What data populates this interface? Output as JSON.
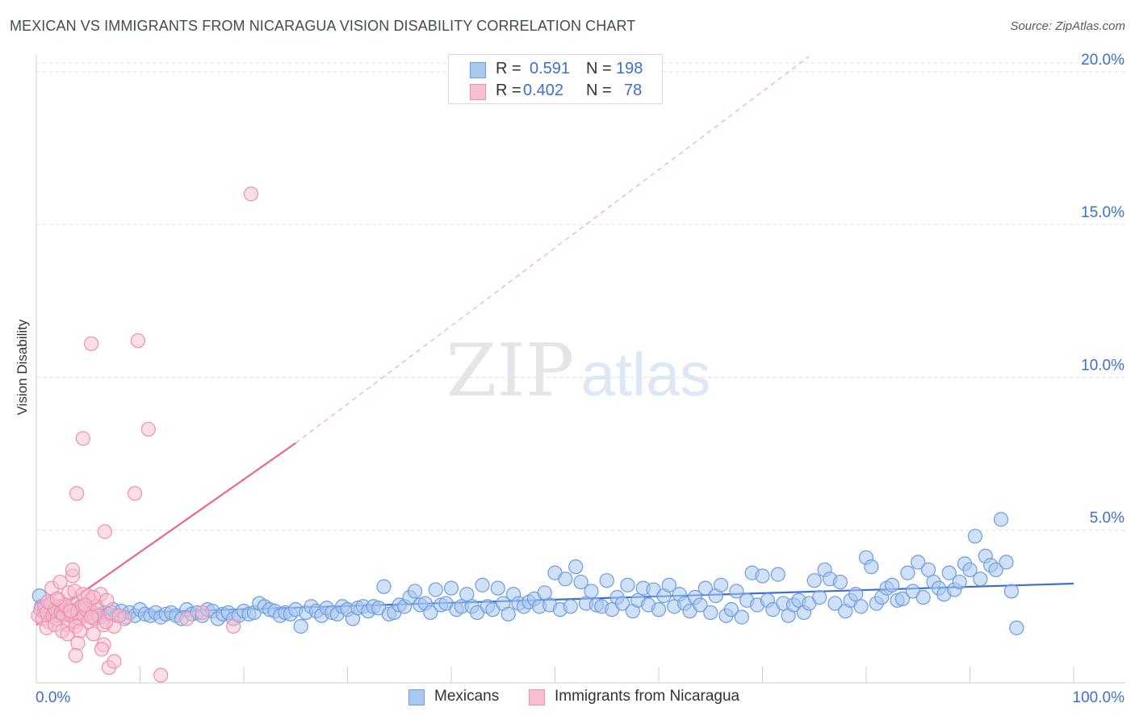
{
  "title": "MEXICAN VS IMMIGRANTS FROM NICARAGUA VISION DISABILITY CORRELATION CHART",
  "source": "Source: ZipAtlas.com",
  "watermark": {
    "zip": "ZIP",
    "atlas": "atlas"
  },
  "colors": {
    "blue": "#3d6fd0",
    "blue_fill": "#a9c8f0",
    "blue_stroke": "#6c9be0",
    "pink": "#e8658f",
    "pink_fill": "#f7bfd0",
    "pink_stroke": "#ee8fad",
    "grid": "#dde1e6",
    "axis_text": "#3d6fd0"
  },
  "legend": {
    "rows": [
      {
        "r_label": "R =",
        "r_value": "0.591",
        "n_label": "N =",
        "n_value": "198"
      },
      {
        "r_label": "R =",
        "r_value": "0.402",
        "n_label": "N =",
        "n_value": "78"
      }
    ]
  },
  "bottom_legend": [
    "Mexicans",
    "Immigrants from Nicaragua"
  ],
  "chart_data": {
    "type": "scatter",
    "title": "MEXICAN VS IMMIGRANTS FROM NICARAGUA VISION DISABILITY CORRELATION CHART",
    "xlabel": "",
    "ylabel": "Vision Disability",
    "xlim": [
      0,
      100
    ],
    "ylim": [
      0,
      20.5
    ],
    "x_tick_labels": [
      "0.0%",
      "100.0%"
    ],
    "y_ticks": [
      5,
      10,
      15,
      20
    ],
    "y_tick_labels": [
      "5.0%",
      "10.0%",
      "15.0%",
      "20.0%"
    ],
    "grid": true,
    "series": [
      {
        "name": "Mexicans",
        "color": "#3d6fd0",
        "trend": {
          "x": [
            0,
            100
          ],
          "y": [
            2.2,
            3.25
          ],
          "style": "solid"
        },
        "points": [
          [
            0.3,
            2.85
          ],
          [
            0.5,
            2.5
          ],
          [
            0.7,
            2.3
          ],
          [
            0.9,
            2.45
          ],
          [
            1.1,
            2.2
          ],
          [
            1.3,
            2.55
          ],
          [
            1.5,
            2.35
          ],
          [
            1.8,
            2.4
          ],
          [
            2.0,
            2.2
          ],
          [
            2.2,
            2.5
          ],
          [
            2.5,
            2.3
          ],
          [
            2.7,
            2.45
          ],
          [
            3.0,
            2.25
          ],
          [
            3.3,
            2.4
          ],
          [
            3.6,
            2.2
          ],
          [
            4.0,
            2.35
          ],
          [
            4.3,
            2.5
          ],
          [
            4.7,
            2.25
          ],
          [
            5.0,
            2.3
          ],
          [
            5.4,
            2.2
          ],
          [
            5.8,
            2.4
          ],
          [
            6.2,
            2.15
          ],
          [
            6.6,
            2.3
          ],
          [
            7.0,
            2.25
          ],
          [
            7.4,
            2.4
          ],
          [
            7.8,
            2.2
          ],
          [
            8.2,
            2.35
          ],
          [
            8.6,
            2.15
          ],
          [
            9.0,
            2.3
          ],
          [
            9.5,
            2.2
          ],
          [
            10.0,
            2.4
          ],
          [
            10.5,
            2.25
          ],
          [
            11.0,
            2.2
          ],
          [
            11.5,
            2.3
          ],
          [
            12.0,
            2.15
          ],
          [
            12.5,
            2.25
          ],
          [
            13.0,
            2.3
          ],
          [
            13.5,
            2.2
          ],
          [
            14.0,
            2.1
          ],
          [
            14.5,
            2.4
          ],
          [
            15.0,
            2.25
          ],
          [
            15.5,
            2.3
          ],
          [
            16.0,
            2.2
          ],
          [
            16.5,
            2.4
          ],
          [
            17.0,
            2.35
          ],
          [
            17.5,
            2.1
          ],
          [
            18.0,
            2.25
          ],
          [
            18.5,
            2.3
          ],
          [
            19.0,
            2.1
          ],
          [
            19.5,
            2.2
          ],
          [
            20.0,
            2.35
          ],
          [
            20.5,
            2.25
          ],
          [
            21.0,
            2.3
          ],
          [
            21.5,
            2.6
          ],
          [
            22.0,
            2.5
          ],
          [
            22.5,
            2.4
          ],
          [
            23.0,
            2.35
          ],
          [
            23.5,
            2.2
          ],
          [
            24.0,
            2.3
          ],
          [
            24.5,
            2.25
          ],
          [
            25.0,
            2.4
          ],
          [
            25.5,
            1.85
          ],
          [
            26.0,
            2.3
          ],
          [
            26.5,
            2.5
          ],
          [
            27.0,
            2.35
          ],
          [
            27.5,
            2.2
          ],
          [
            28.0,
            2.45
          ],
          [
            28.5,
            2.3
          ],
          [
            29.0,
            2.25
          ],
          [
            29.5,
            2.5
          ],
          [
            30.0,
            2.4
          ],
          [
            30.5,
            2.1
          ],
          [
            31.0,
            2.45
          ],
          [
            31.5,
            2.5
          ],
          [
            32.0,
            2.35
          ],
          [
            32.5,
            2.5
          ],
          [
            33.0,
            2.45
          ],
          [
            33.5,
            3.15
          ],
          [
            34.0,
            2.25
          ],
          [
            34.5,
            2.3
          ],
          [
            35.0,
            2.55
          ],
          [
            35.5,
            2.5
          ],
          [
            36.0,
            2.8
          ],
          [
            36.5,
            3.0
          ],
          [
            37.0,
            2.55
          ],
          [
            37.5,
            2.6
          ],
          [
            38.0,
            2.3
          ],
          [
            38.5,
            3.05
          ],
          [
            39.0,
            2.55
          ],
          [
            39.5,
            2.6
          ],
          [
            40.0,
            3.1
          ],
          [
            40.5,
            2.4
          ],
          [
            41.0,
            2.5
          ],
          [
            41.5,
            2.9
          ],
          [
            42.0,
            2.5
          ],
          [
            42.5,
            2.3
          ],
          [
            43.0,
            3.2
          ],
          [
            43.5,
            2.5
          ],
          [
            44.0,
            2.4
          ],
          [
            44.5,
            3.1
          ],
          [
            45.0,
            2.6
          ],
          [
            45.5,
            2.25
          ],
          [
            46.0,
            2.9
          ],
          [
            46.5,
            2.6
          ],
          [
            47.0,
            2.5
          ],
          [
            47.5,
            2.65
          ],
          [
            48.0,
            2.75
          ],
          [
            48.5,
            2.5
          ],
          [
            49.0,
            2.95
          ],
          [
            49.5,
            2.55
          ],
          [
            50.0,
            3.6
          ],
          [
            50.5,
            2.4
          ],
          [
            51.0,
            3.4
          ],
          [
            51.5,
            2.5
          ],
          [
            52.0,
            3.8
          ],
          [
            52.5,
            3.3
          ],
          [
            53.0,
            2.6
          ],
          [
            53.5,
            3.0
          ],
          [
            54.0,
            2.55
          ],
          [
            54.5,
            2.5
          ],
          [
            55.0,
            3.35
          ],
          [
            55.5,
            2.4
          ],
          [
            56.0,
            2.8
          ],
          [
            56.5,
            2.6
          ],
          [
            57.0,
            3.2
          ],
          [
            57.5,
            2.35
          ],
          [
            58.0,
            2.7
          ],
          [
            58.5,
            3.1
          ],
          [
            59.0,
            2.55
          ],
          [
            59.5,
            3.05
          ],
          [
            60.0,
            2.4
          ],
          [
            60.5,
            2.85
          ],
          [
            61.0,
            3.2
          ],
          [
            61.5,
            2.5
          ],
          [
            62.0,
            2.9
          ],
          [
            62.5,
            2.6
          ],
          [
            63.0,
            2.35
          ],
          [
            63.5,
            2.8
          ],
          [
            64.0,
            2.55
          ],
          [
            64.5,
            3.1
          ],
          [
            65.0,
            2.3
          ],
          [
            65.5,
            2.85
          ],
          [
            66.0,
            3.2
          ],
          [
            66.5,
            2.2
          ],
          [
            67.0,
            2.4
          ],
          [
            67.5,
            3.0
          ],
          [
            68.0,
            2.15
          ],
          [
            68.5,
            2.7
          ],
          [
            69.0,
            3.6
          ],
          [
            69.5,
            2.55
          ],
          [
            70.0,
            3.5
          ],
          [
            70.5,
            2.7
          ],
          [
            71.0,
            2.4
          ],
          [
            71.5,
            3.55
          ],
          [
            72.0,
            2.6
          ],
          [
            72.5,
            2.2
          ],
          [
            73.0,
            2.55
          ],
          [
            73.5,
            2.7
          ],
          [
            74.0,
            2.3
          ],
          [
            74.5,
            2.6
          ],
          [
            75.0,
            3.35
          ],
          [
            75.5,
            2.8
          ],
          [
            76.0,
            3.7
          ],
          [
            76.5,
            3.4
          ],
          [
            77.0,
            2.6
          ],
          [
            77.5,
            3.3
          ],
          [
            78.0,
            2.35
          ],
          [
            78.5,
            2.7
          ],
          [
            79.0,
            2.9
          ],
          [
            79.5,
            2.5
          ],
          [
            80.0,
            4.1
          ],
          [
            80.5,
            3.8
          ],
          [
            81.0,
            2.6
          ],
          [
            81.5,
            2.8
          ],
          [
            82.0,
            3.1
          ],
          [
            82.5,
            3.2
          ],
          [
            83.0,
            2.7
          ],
          [
            83.5,
            2.75
          ],
          [
            84.0,
            3.6
          ],
          [
            84.5,
            3.0
          ],
          [
            85.0,
            3.95
          ],
          [
            85.5,
            2.8
          ],
          [
            86.0,
            3.7
          ],
          [
            86.5,
            3.3
          ],
          [
            87.0,
            3.1
          ],
          [
            87.5,
            2.9
          ],
          [
            88.0,
            3.6
          ],
          [
            88.5,
            3.05
          ],
          [
            89.0,
            3.3
          ],
          [
            89.5,
            3.9
          ],
          [
            90.0,
            3.7
          ],
          [
            90.5,
            4.8
          ],
          [
            91.0,
            3.4
          ],
          [
            91.5,
            4.15
          ],
          [
            92.0,
            3.85
          ],
          [
            92.5,
            3.7
          ],
          [
            93.0,
            5.35
          ],
          [
            93.5,
            3.95
          ],
          [
            94.0,
            3.0
          ],
          [
            94.5,
            1.8
          ]
        ]
      },
      {
        "name": "Immigrants from Nicaragua",
        "color": "#e8658f",
        "trend": {
          "x": [
            0,
            25
          ],
          "y": [
            1.9,
            7.85
          ],
          "style": "solid",
          "extended_to": [
            74.5,
            20.5
          ],
          "extended_style": "dashed"
        },
        "points": [
          [
            0.2,
            2.2
          ],
          [
            0.4,
            2.4
          ],
          [
            0.6,
            2.1
          ],
          [
            0.8,
            2.5
          ],
          [
            1.0,
            2.3
          ],
          [
            1.2,
            2.0
          ],
          [
            1.4,
            2.6
          ],
          [
            1.6,
            2.2
          ],
          [
            1.8,
            2.4
          ],
          [
            2.0,
            2.1
          ],
          [
            2.2,
            2.7
          ],
          [
            2.4,
            2.3
          ],
          [
            2.6,
            2.2
          ],
          [
            2.8,
            2.5
          ],
          [
            3.0,
            1.9
          ],
          [
            3.2,
            2.4
          ],
          [
            3.4,
            2.2
          ],
          [
            3.6,
            2.6
          ],
          [
            3.8,
            2.0
          ],
          [
            4.0,
            2.3
          ],
          [
            4.2,
            2.1
          ],
          [
            4.4,
            2.5
          ],
          [
            4.6,
            2.2
          ],
          [
            4.8,
            2.4
          ],
          [
            5.0,
            2.0
          ],
          [
            5.2,
            2.7
          ],
          [
            5.4,
            2.3
          ],
          [
            5.6,
            2.1
          ],
          [
            5.8,
            2.5
          ],
          [
            6.0,
            2.2
          ],
          [
            1.5,
            3.1
          ],
          [
            2.3,
            3.3
          ],
          [
            3.1,
            2.95
          ],
          [
            3.7,
            3.0
          ],
          [
            4.5,
            2.9
          ],
          [
            5.0,
            2.85
          ],
          [
            6.2,
            2.9
          ],
          [
            3.5,
            3.5
          ],
          [
            3.5,
            3.7
          ],
          [
            5.5,
            2.8
          ],
          [
            1.0,
            1.8
          ],
          [
            1.8,
            1.9
          ],
          [
            2.5,
            1.7
          ],
          [
            3.0,
            1.6
          ],
          [
            3.8,
            1.85
          ],
          [
            4.2,
            1.7
          ],
          [
            5.5,
            1.6
          ],
          [
            6.5,
            1.9
          ],
          [
            7.5,
            1.85
          ],
          [
            8.5,
            2.1
          ],
          [
            4.0,
            1.3
          ],
          [
            6.5,
            1.25
          ],
          [
            3.8,
            0.9
          ],
          [
            7.0,
            0.5
          ],
          [
            7.5,
            0.7
          ],
          [
            12.0,
            0.25
          ],
          [
            6.3,
            1.1
          ],
          [
            19.0,
            1.85
          ],
          [
            14.5,
            2.1
          ],
          [
            16.0,
            2.3
          ],
          [
            2.8,
            2.55
          ],
          [
            3.3,
            2.35
          ],
          [
            4.7,
            2.55
          ],
          [
            5.3,
            2.15
          ],
          [
            6.7,
            2.0
          ],
          [
            7.2,
            2.3
          ],
          [
            1.1,
            2.65
          ],
          [
            2.0,
            2.75
          ],
          [
            6.8,
            2.7
          ],
          [
            8.0,
            2.2
          ],
          [
            5.3,
            11.1
          ],
          [
            9.8,
            11.2
          ],
          [
            20.7,
            16.0
          ],
          [
            10.8,
            8.3
          ],
          [
            4.5,
            8.0
          ],
          [
            3.9,
            6.2
          ],
          [
            9.5,
            6.2
          ],
          [
            6.6,
            4.95
          ]
        ]
      }
    ]
  }
}
